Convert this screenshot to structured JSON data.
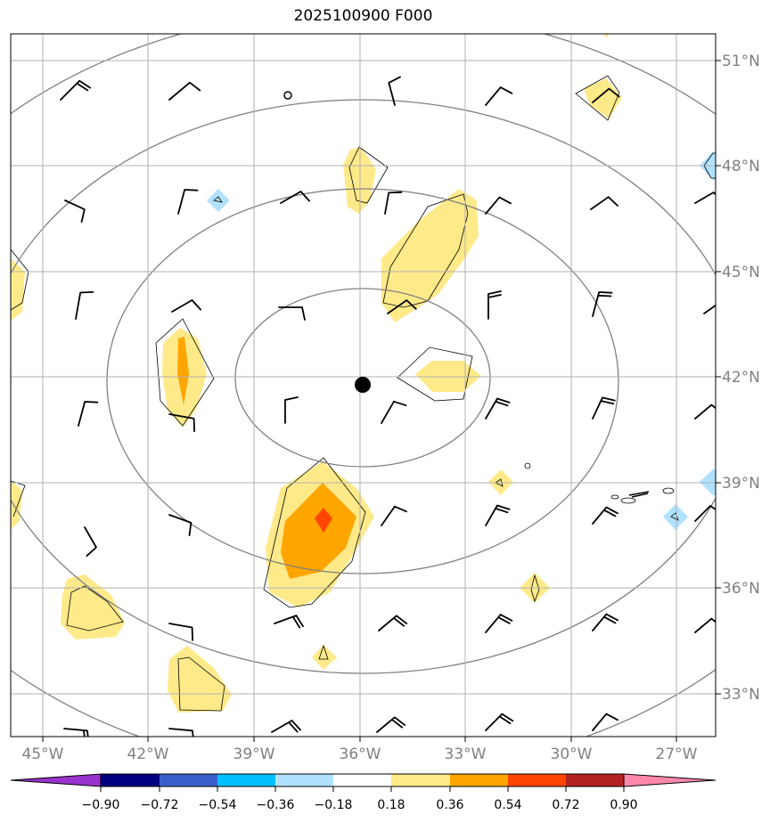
{
  "title": "2025100900 F000",
  "map": {
    "lon_labels": [
      "45°W",
      "42°W",
      "39°W",
      "36°W",
      "33°W",
      "30°W",
      "27°W"
    ],
    "lat_labels": [
      "51°N",
      "48°N",
      "45°N",
      "42°N",
      "39°N",
      "36°N",
      "33°N"
    ],
    "center_marker": "storm-center"
  },
  "colorbar": {
    "colors": [
      "#9932cc",
      "#000080",
      "#3a5fcd",
      "#00bfff",
      "#b0e2ff",
      "#ffffff",
      "#ffea8a",
      "#ffa500",
      "#ff4500",
      "#b22222",
      "#ff88aa"
    ],
    "ticks": [
      "−0.90",
      "−0.72",
      "−0.54",
      "−0.36",
      "−0.18",
      "0.18",
      "0.36",
      "0.54",
      "0.72",
      "0.90"
    ]
  }
}
